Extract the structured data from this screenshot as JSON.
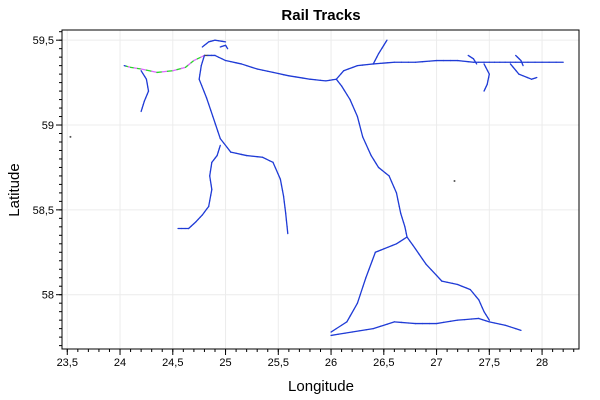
{
  "chart_data": {
    "type": "line",
    "title": "Rail Tracks",
    "xlabel": "Longitude",
    "ylabel": "Latitude",
    "xlim": [
      23.45,
      28.35
    ],
    "ylim": [
      57.68,
      59.56
    ],
    "xticks": [
      23.5,
      24,
      24.5,
      25,
      25.5,
      26,
      26.5,
      27,
      27.5,
      28
    ],
    "xtick_labels": [
      "23,5",
      "24",
      "24,5",
      "25",
      "25,5",
      "26",
      "26,5",
      "27",
      "27,5",
      "28"
    ],
    "yticks": [
      58,
      58.5,
      59,
      59.5
    ],
    "ytick_labels": [
      "58",
      "58,5",
      "59",
      "59,5"
    ],
    "grid": true,
    "legend": "none",
    "palette": [
      "#1f3bd6",
      "#8a2be2",
      "#ff3fbf",
      "#27d627",
      "#00c8d8",
      "#ff2a2a",
      "#9acd32",
      "#2b7fff",
      "#d45500",
      "#7fff00",
      "#e066ff",
      "#00a36c",
      "#444444",
      "#c71585"
    ],
    "series": [
      {
        "values": [
          [
            24.04,
            59.35
          ],
          [
            24.1,
            59.34
          ],
          [
            24.2,
            59.33
          ],
          [
            24.35,
            59.31
          ],
          [
            24.5,
            59.32
          ],
          [
            24.62,
            59.34
          ],
          [
            24.7,
            59.38
          ],
          [
            24.8,
            59.41
          ],
          [
            24.9,
            59.41
          ],
          [
            25.0,
            59.38
          ],
          [
            25.15,
            59.36
          ],
          [
            25.3,
            59.33
          ],
          [
            25.45,
            59.31
          ],
          [
            25.6,
            59.29
          ],
          [
            25.8,
            59.27
          ],
          [
            25.95,
            59.26
          ],
          [
            26.05,
            59.27
          ]
        ]
      },
      {
        "values": [
          [
            24.2,
            59.32
          ],
          [
            24.25,
            59.27
          ],
          [
            24.27,
            59.2
          ],
          [
            24.23,
            59.14
          ],
          [
            24.2,
            59.08
          ]
        ]
      },
      {
        "values": [
          [
            24.8,
            59.41
          ],
          [
            24.77,
            59.35
          ],
          [
            24.75,
            59.27
          ],
          [
            24.82,
            59.16
          ],
          [
            24.88,
            59.05
          ],
          [
            24.95,
            58.92
          ],
          [
            25.05,
            58.84
          ],
          [
            25.2,
            58.82
          ],
          [
            25.35,
            58.81
          ],
          [
            25.45,
            58.78
          ],
          [
            25.52,
            58.68
          ],
          [
            25.55,
            58.58
          ],
          [
            25.57,
            58.48
          ],
          [
            25.59,
            58.36
          ]
        ]
      },
      {
        "values": [
          [
            24.95,
            58.88
          ],
          [
            24.92,
            58.82
          ],
          [
            24.87,
            58.78
          ],
          [
            24.85,
            58.7
          ],
          [
            24.87,
            58.62
          ],
          [
            24.84,
            58.52
          ],
          [
            24.78,
            58.47
          ],
          [
            24.72,
            58.43
          ],
          [
            24.65,
            58.39
          ],
          [
            24.55,
            58.39
          ]
        ]
      },
      {
        "values": [
          [
            26.05,
            59.27
          ],
          [
            26.1,
            59.23
          ],
          [
            26.18,
            59.15
          ],
          [
            26.25,
            59.05
          ],
          [
            26.3,
            58.93
          ],
          [
            26.38,
            58.82
          ],
          [
            26.45,
            58.75
          ],
          [
            26.55,
            58.7
          ],
          [
            26.62,
            58.6
          ],
          [
            26.66,
            58.48
          ],
          [
            26.7,
            58.4
          ],
          [
            26.72,
            58.34
          ]
        ]
      },
      {
        "values": [
          [
            26.72,
            58.34
          ],
          [
            26.62,
            58.3
          ],
          [
            26.5,
            58.27
          ],
          [
            26.42,
            58.25
          ],
          [
            26.33,
            58.1
          ],
          [
            26.25,
            57.95
          ],
          [
            26.15,
            57.84
          ],
          [
            26.0,
            57.78
          ]
        ]
      },
      {
        "values": [
          [
            26.72,
            58.34
          ],
          [
            26.8,
            58.27
          ],
          [
            26.9,
            58.18
          ],
          [
            27.05,
            58.08
          ],
          [
            27.2,
            58.06
          ],
          [
            27.32,
            58.03
          ],
          [
            27.4,
            57.97
          ],
          [
            27.45,
            57.9
          ],
          [
            27.5,
            57.85
          ]
        ]
      },
      {
        "values": [
          [
            26.0,
            57.76
          ],
          [
            26.2,
            57.78
          ],
          [
            26.4,
            57.8
          ],
          [
            26.6,
            57.84
          ],
          [
            26.8,
            57.83
          ],
          [
            27.0,
            57.83
          ],
          [
            27.2,
            57.85
          ],
          [
            27.4,
            57.86
          ],
          [
            27.5,
            57.84
          ],
          [
            27.65,
            57.82
          ],
          [
            27.8,
            57.79
          ]
        ]
      },
      {
        "values": [
          [
            26.05,
            59.27
          ],
          [
            26.12,
            59.32
          ],
          [
            26.25,
            59.35
          ],
          [
            26.4,
            59.36
          ],
          [
            26.6,
            59.37
          ],
          [
            26.8,
            59.37
          ],
          [
            27.0,
            59.38
          ],
          [
            27.2,
            59.38
          ],
          [
            27.35,
            59.37
          ],
          [
            27.5,
            59.37
          ],
          [
            27.65,
            59.37
          ],
          [
            27.8,
            59.37
          ],
          [
            28.0,
            59.37
          ],
          [
            28.2,
            59.37
          ]
        ]
      },
      {
        "values": [
          [
            26.4,
            59.36
          ],
          [
            26.45,
            59.42
          ],
          [
            26.5,
            59.47
          ],
          [
            26.53,
            59.5
          ]
        ]
      },
      {
        "values": [
          [
            27.45,
            59.36
          ],
          [
            27.5,
            59.3
          ],
          [
            27.48,
            59.24
          ],
          [
            27.45,
            59.2
          ]
        ]
      },
      {
        "values": [
          [
            27.7,
            59.36
          ],
          [
            27.78,
            59.3
          ],
          [
            27.9,
            59.27
          ],
          [
            27.95,
            59.28
          ]
        ]
      },
      {
        "values": [
          [
            24.78,
            59.46
          ],
          [
            24.84,
            59.49
          ],
          [
            24.9,
            59.5
          ],
          [
            25.0,
            59.49
          ]
        ]
      },
      {
        "values": [
          [
            24.95,
            59.46
          ],
          [
            25.0,
            59.47
          ],
          [
            25.02,
            59.45
          ]
        ]
      },
      {
        "values": [
          [
            27.3,
            59.41
          ],
          [
            27.35,
            59.39
          ],
          [
            27.38,
            59.36
          ]
        ]
      },
      {
        "values": [
          [
            27.75,
            59.41
          ],
          [
            27.8,
            59.38
          ],
          [
            27.82,
            59.35
          ]
        ]
      }
    ],
    "points": [
      [
        23.53,
        58.93
      ],
      [
        27.17,
        58.67
      ]
    ]
  }
}
